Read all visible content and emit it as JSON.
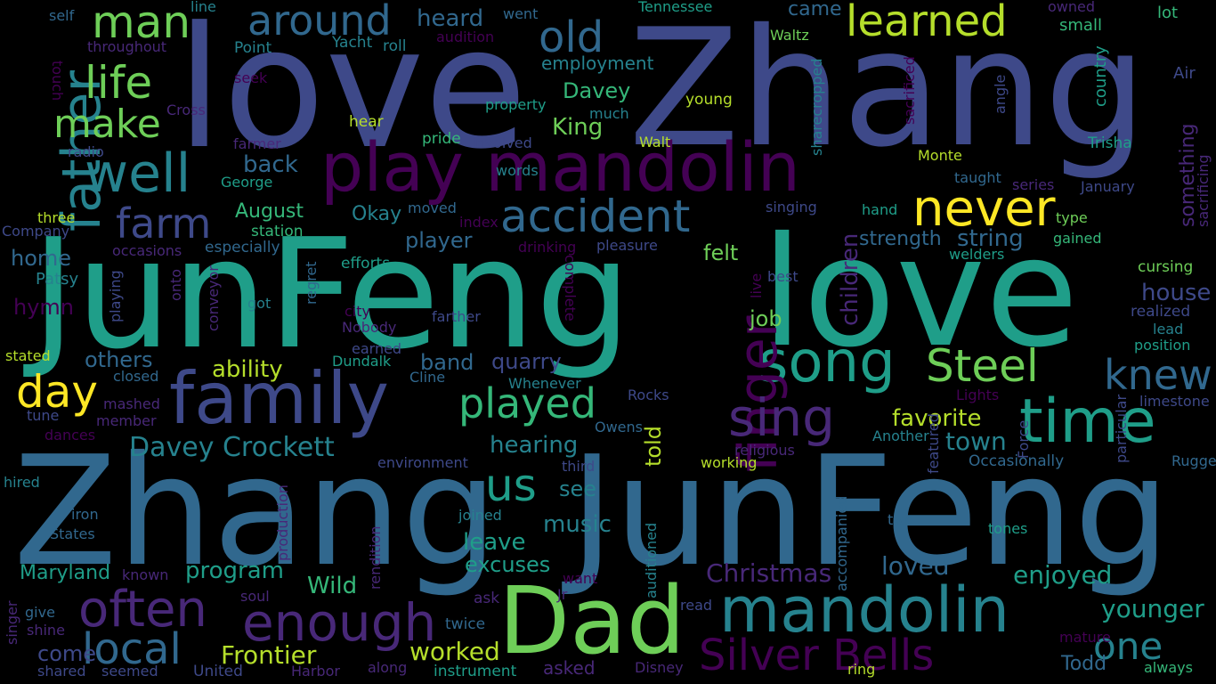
{
  "words": [
    "love",
    "Zhang",
    "JunFeng",
    "love",
    "Zhang",
    "JunFeng",
    "play",
    "Dad",
    "play mandolin",
    "mandolin",
    "family",
    "father",
    "song",
    "Steel",
    "time",
    "finger",
    "accident",
    "enough",
    "Silver Bells",
    "often",
    "sing",
    "never",
    "learned",
    "well",
    "around",
    "man",
    "life",
    "old",
    "local",
    "knew",
    "day",
    "make",
    "us",
    "played",
    "one",
    "farm",
    "Davey Crockett",
    "Frontier",
    "Christmas",
    "worked",
    "younger",
    "house",
    "loved",
    "enjoyed",
    "favorite",
    "town",
    "ability",
    "string",
    "strength",
    "children",
    "quarry",
    "band",
    "others",
    "player",
    "job",
    "felt",
    "hearing",
    "music",
    "leave",
    "excuses",
    "program",
    "Wild",
    "see",
    "told",
    "Maryland",
    "Davey",
    "King",
    "Okay",
    "August",
    "back",
    "employment",
    "heard",
    "came",
    "home",
    "hymn",
    "come",
    "Patsy",
    "something",
    "sacrificing",
    "country",
    "Air",
    "lot",
    "owned",
    "small",
    "Tennessee",
    "line",
    "self",
    "went",
    "throughout",
    "Point",
    "Yacht",
    "roll",
    "audition",
    "touch",
    "seek",
    "Cross",
    "radio",
    "farmer",
    "George",
    "three",
    "Company",
    "occasions",
    "especially",
    "station",
    "Waltz",
    "property",
    "much",
    "Walt",
    "young",
    "hear",
    "pride",
    "involved",
    "words",
    "taught",
    "series",
    "January",
    "hand",
    "type",
    "gained",
    "welders",
    "cursing",
    "realized",
    "lead",
    "position",
    "limestone",
    "Lights",
    "Another",
    "Occasionally",
    "Rugged",
    "particular",
    "Force",
    "featured",
    "two",
    "tones",
    "mature",
    "always",
    "Todd",
    "ring",
    "Disney",
    "read",
    "asked",
    "instrument",
    "along",
    "United",
    "Harbor",
    "seemed",
    "shared",
    "shine",
    "give",
    "singer",
    "soul",
    "known",
    "States",
    "iron",
    "hired",
    "environment",
    "third",
    "joined",
    "production",
    "rendition",
    "accompanied",
    "auditioned",
    "want",
    "Jr",
    "ask",
    "twice",
    "working",
    "religious",
    "Owens",
    "Rocks",
    "Whenever",
    "Cline",
    "Dundalk",
    "Nobody",
    "earned",
    "city",
    "got",
    "farther",
    "complete",
    "regret",
    "conveyor",
    "onto",
    "playing",
    "efforts",
    "drinking",
    "pleasure",
    "index",
    "moved",
    "singing",
    "live",
    "best",
    "sharecropped",
    "sacrificed",
    "angle",
    "Monte",
    "Trisha",
    "mashed",
    "member",
    "tune",
    "dances",
    "closed",
    "stated",
    "Tennessee"
  ]
}
